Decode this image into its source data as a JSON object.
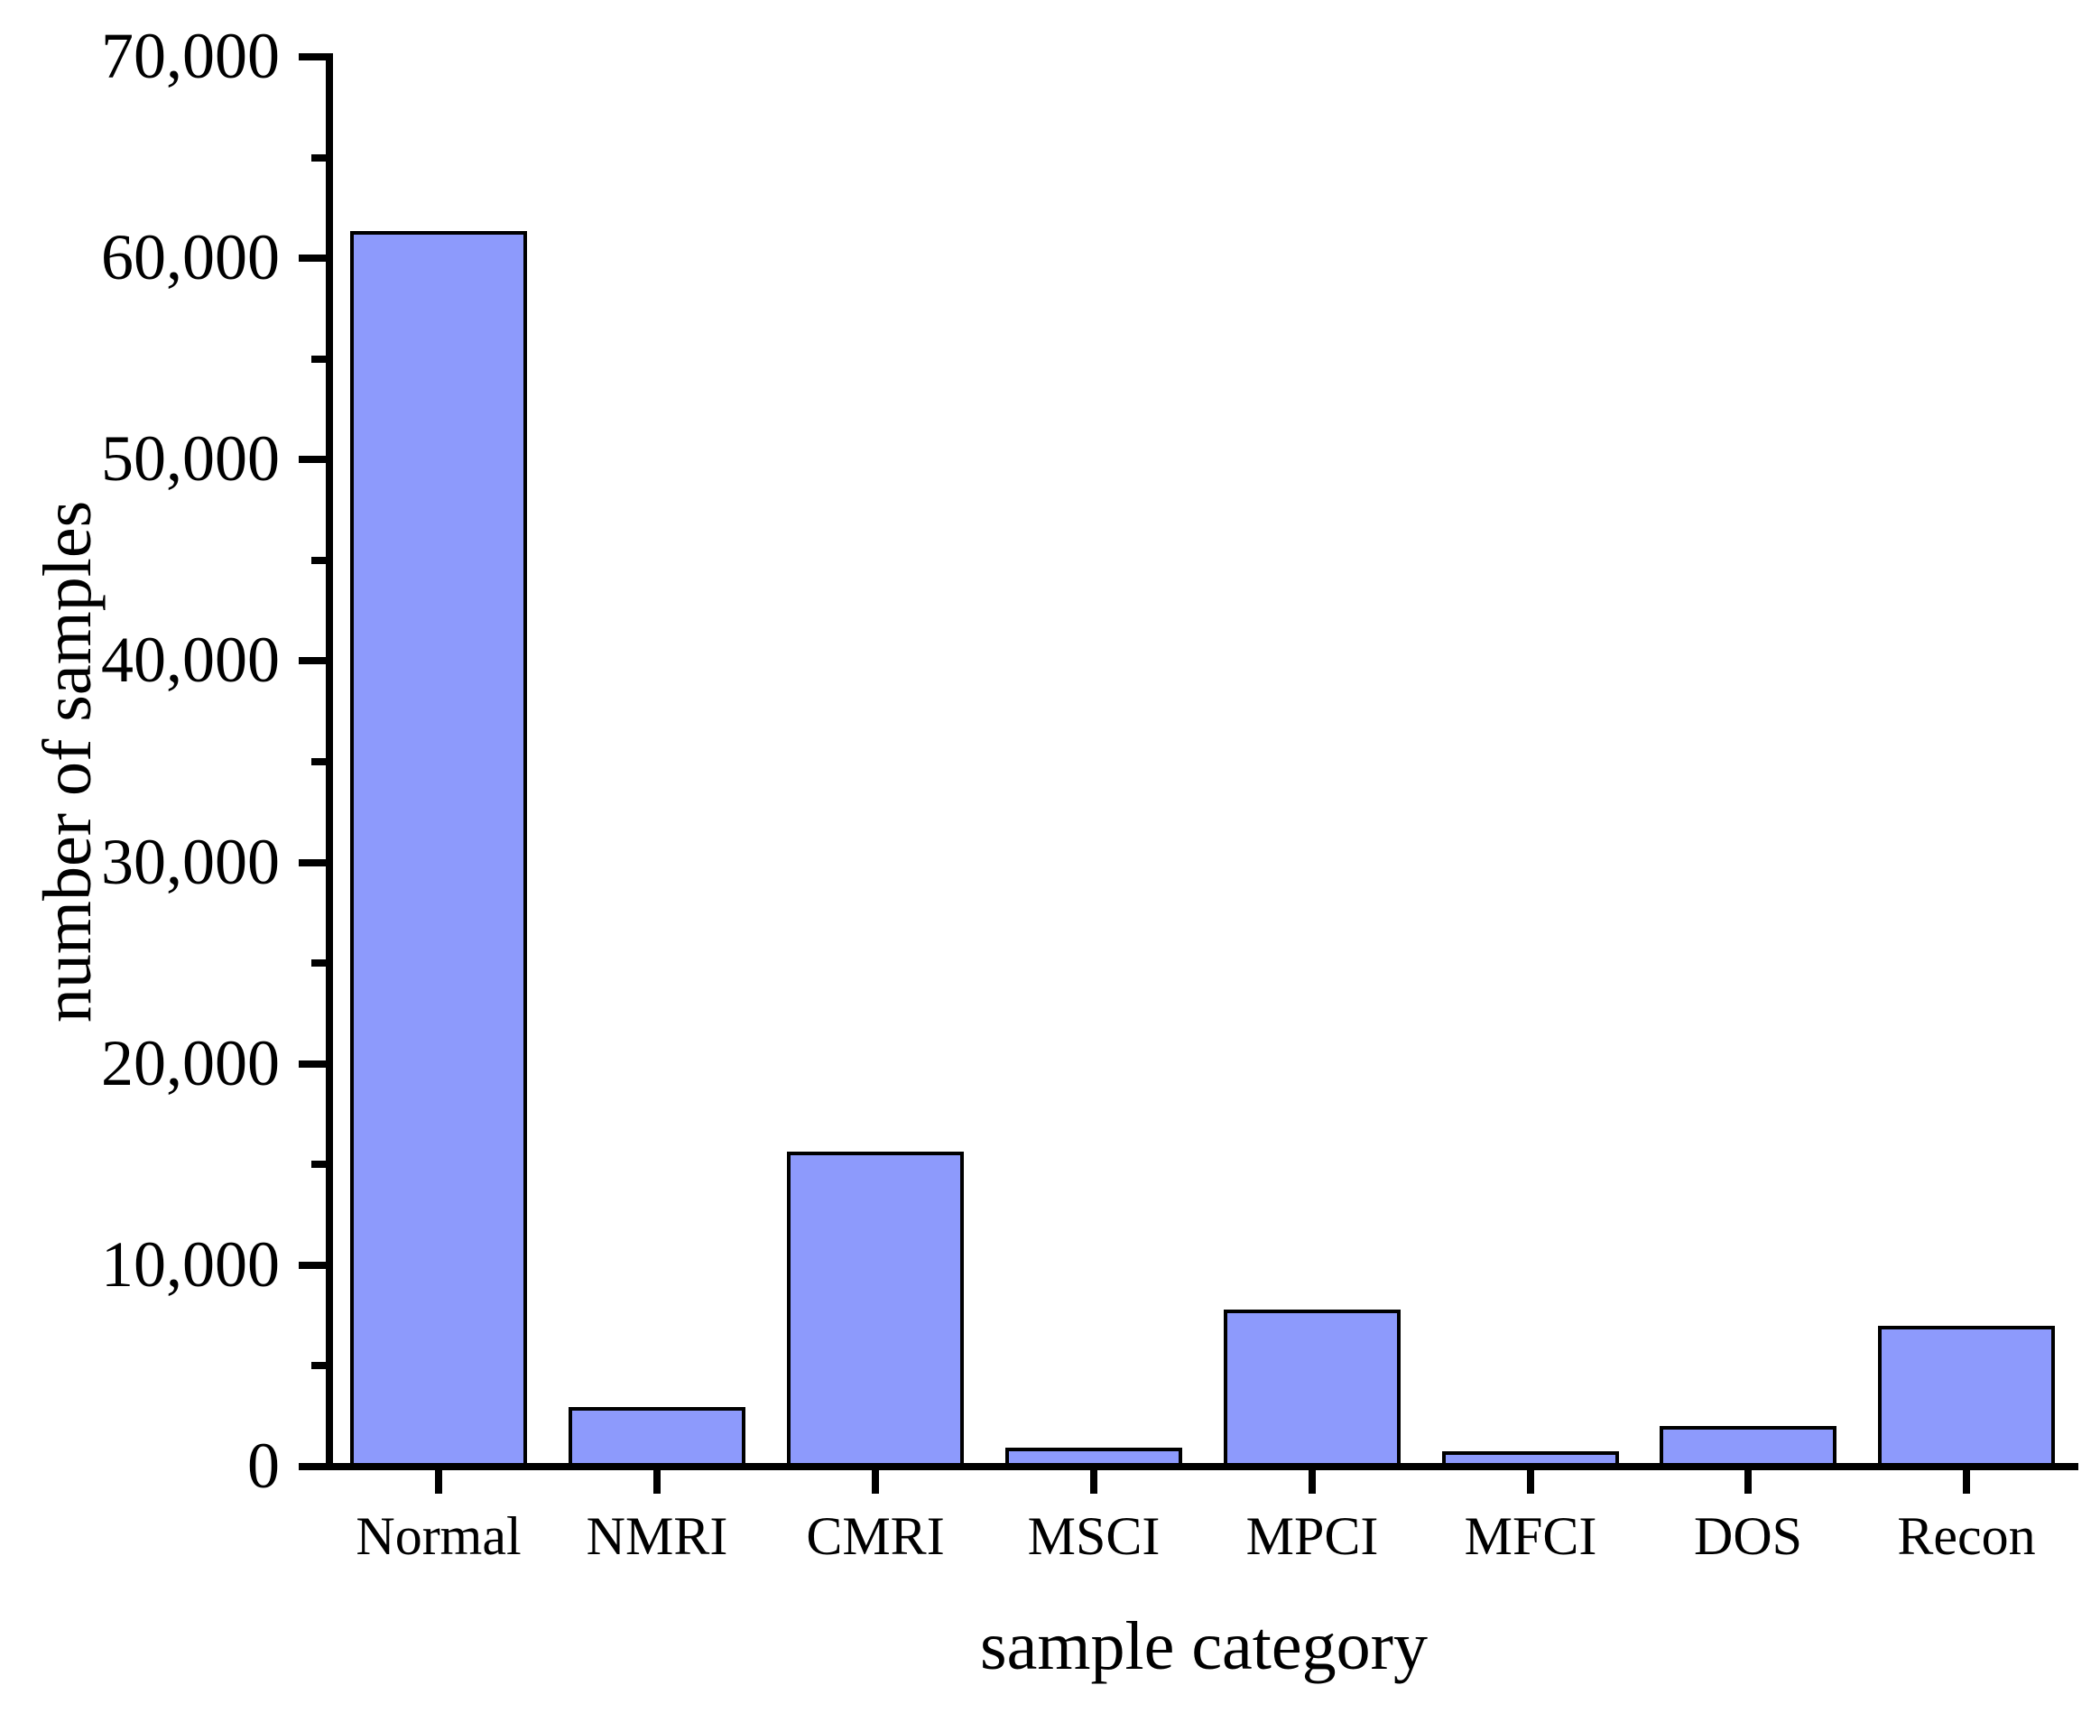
{
  "figure": {
    "background": "#ffffff",
    "axis_color": "#000000"
  },
  "chart_data": {
    "type": "bar",
    "title": "",
    "categories": [
      "Normal",
      "NMRI",
      "CMRI",
      "MSCI",
      "MPCI",
      "MFCI",
      "DOS",
      "Recon"
    ],
    "values": [
      61156,
      2763,
      15466,
      782,
      7637,
      573,
      1837,
      6805
    ],
    "xlabel": "sample category",
    "ylabel": "number of samples",
    "ylim": [
      0,
      70000
    ],
    "y_major_step": 10000,
    "y_minor_step": 5000,
    "y_tick_labels": [
      "0",
      "10,000",
      "20,000",
      "30,000",
      "40,000",
      "50,000",
      "60,000",
      "70,000"
    ],
    "bar_fill": "#8d9afc",
    "bar_border": "#000000",
    "grid": false,
    "legend": "none"
  }
}
